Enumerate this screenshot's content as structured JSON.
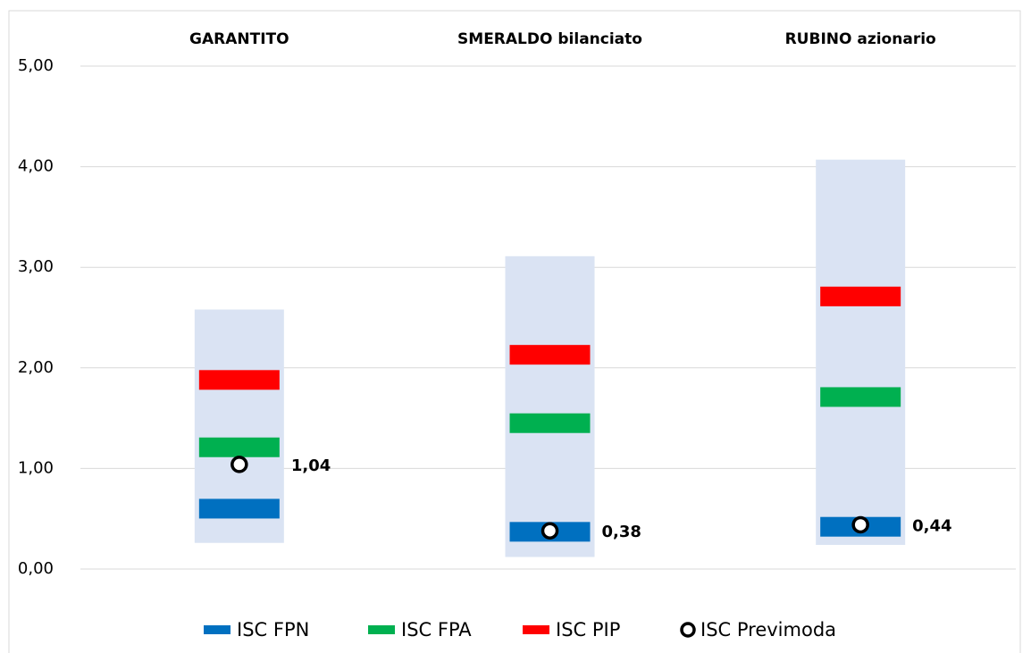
{
  "chart_data": {
    "type": "range",
    "categories": [
      "GARANTITO",
      "SMERALDO bilanciato",
      "RUBINO azionario"
    ],
    "range": {
      "color": "#dae3f3",
      "low": [
        0.26,
        0.12,
        0.24
      ],
      "high": [
        2.58,
        3.11,
        4.07
      ]
    },
    "series": [
      {
        "name": "ISC FPN",
        "color": "#0070c0",
        "marker": "bar",
        "values": [
          0.6,
          0.37,
          0.42
        ]
      },
      {
        "name": "ISC FPA",
        "color": "#00b050",
        "marker": "bar",
        "values": [
          1.21,
          1.45,
          1.71
        ]
      },
      {
        "name": "ISC PIP",
        "color": "#ff0000",
        "marker": "bar",
        "values": [
          1.88,
          2.13,
          2.71
        ]
      },
      {
        "name": "ISC Previmoda",
        "color": "#000000",
        "marker": "circle",
        "values": [
          1.04,
          0.38,
          0.44
        ],
        "value_labels": [
          "1,04",
          "0,38",
          "0,44"
        ]
      }
    ],
    "ylim": [
      0,
      5
    ],
    "yticks": [
      {
        "value": 0,
        "label": "0,00"
      },
      {
        "value": 1,
        "label": "1,00"
      },
      {
        "value": 2,
        "label": "2,00"
      },
      {
        "value": 3,
        "label": "3,00"
      },
      {
        "value": 4,
        "label": "4,00"
      },
      {
        "value": 5,
        "label": "5,00"
      }
    ],
    "grid": true
  }
}
